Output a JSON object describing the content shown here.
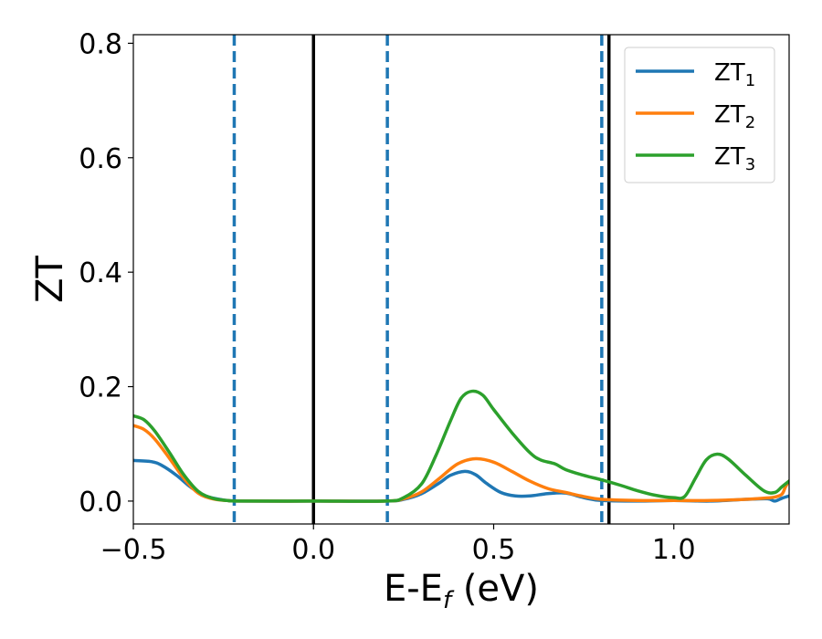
{
  "chart_data": {
    "type": "line",
    "title": "",
    "xlabel": {
      "main": "E-E",
      "sub": "f",
      "unit": " (eV)"
    },
    "ylabel": "ZT",
    "xlim": [
      -0.5,
      1.32
    ],
    "ylim": [
      -0.04,
      0.815
    ],
    "xticks": [
      -0.5,
      0.0,
      0.5,
      1.0
    ],
    "xtick_labels": [
      "−0.5",
      "0.0",
      "0.5",
      "1.0"
    ],
    "yticks": [
      0.0,
      0.2,
      0.4,
      0.6,
      0.8
    ],
    "ytick_labels": [
      "0.0",
      "0.2",
      "0.4",
      "0.6",
      "0.8"
    ],
    "grid": false,
    "legend_placement": "top-right",
    "vlines": [
      {
        "x": -0.22,
        "color": "#1f77b4",
        "style": "dashed"
      },
      {
        "x": 0.0,
        "color": "#000000",
        "style": "solid"
      },
      {
        "x": 0.205,
        "color": "#1f77b4",
        "style": "dashed"
      },
      {
        "x": 0.8,
        "color": "#1f77b4",
        "style": "dashed"
      },
      {
        "x": 0.82,
        "color": "#000000",
        "style": "solid"
      }
    ],
    "series": [
      {
        "name": "ZT",
        "sub": "1",
        "color": "#1f77b4",
        "x": [
          -0.5,
          -0.45,
          -0.42,
          -0.38,
          -0.34,
          -0.3,
          -0.25,
          -0.2,
          0.0,
          0.2,
          0.25,
          0.3,
          0.35,
          0.38,
          0.42,
          0.45,
          0.48,
          0.52,
          0.56,
          0.6,
          0.65,
          0.7,
          0.75,
          0.8,
          0.9,
          1.0,
          1.1,
          1.2,
          1.26,
          1.28,
          1.3,
          1.32
        ],
        "y": [
          0.071,
          0.069,
          0.062,
          0.045,
          0.024,
          0.009,
          0.002,
          0.0,
          0.0,
          0.0,
          0.003,
          0.013,
          0.032,
          0.045,
          0.052,
          0.046,
          0.031,
          0.015,
          0.009,
          0.009,
          0.013,
          0.014,
          0.006,
          0.001,
          0.0,
          0.001,
          0.0,
          0.003,
          0.004,
          0.0,
          0.005,
          0.009
        ]
      },
      {
        "name": "ZT",
        "sub": "2",
        "color": "#ff7f0e",
        "x": [
          -0.5,
          -0.47,
          -0.44,
          -0.4,
          -0.36,
          -0.32,
          -0.28,
          -0.24,
          -0.2,
          0.0,
          0.2,
          0.25,
          0.3,
          0.35,
          0.4,
          0.45,
          0.5,
          0.55,
          0.6,
          0.65,
          0.7,
          0.75,
          0.8,
          0.9,
          1.0,
          1.1,
          1.2,
          1.25,
          1.28,
          1.3,
          1.31,
          1.32
        ],
        "y": [
          0.132,
          0.125,
          0.108,
          0.075,
          0.04,
          0.014,
          0.004,
          0.001,
          0.0,
          0.0,
          0.0,
          0.004,
          0.016,
          0.04,
          0.065,
          0.074,
          0.068,
          0.052,
          0.035,
          0.022,
          0.015,
          0.008,
          0.003,
          0.001,
          0.001,
          0.001,
          0.003,
          0.005,
          0.007,
          0.012,
          0.025,
          0.035
        ]
      },
      {
        "name": "ZT",
        "sub": "3",
        "color": "#2ca02c",
        "x": [
          -0.5,
          -0.47,
          -0.44,
          -0.4,
          -0.36,
          -0.32,
          -0.28,
          -0.24,
          -0.2,
          0.0,
          0.2,
          0.25,
          0.3,
          0.34,
          0.38,
          0.41,
          0.44,
          0.47,
          0.5,
          0.55,
          0.6,
          0.63,
          0.67,
          0.7,
          0.75,
          0.8,
          0.85,
          0.9,
          0.95,
          1.0,
          1.03,
          1.06,
          1.09,
          1.12,
          1.15,
          1.2,
          1.25,
          1.28,
          1.3,
          1.32
        ],
        "y": [
          0.149,
          0.142,
          0.122,
          0.085,
          0.046,
          0.017,
          0.005,
          0.001,
          0.0,
          0.0,
          0.0,
          0.006,
          0.03,
          0.08,
          0.14,
          0.18,
          0.192,
          0.185,
          0.16,
          0.12,
          0.085,
          0.072,
          0.065,
          0.055,
          0.045,
          0.037,
          0.028,
          0.018,
          0.01,
          0.006,
          0.008,
          0.04,
          0.072,
          0.082,
          0.074,
          0.045,
          0.018,
          0.015,
          0.025,
          0.035
        ]
      }
    ]
  }
}
